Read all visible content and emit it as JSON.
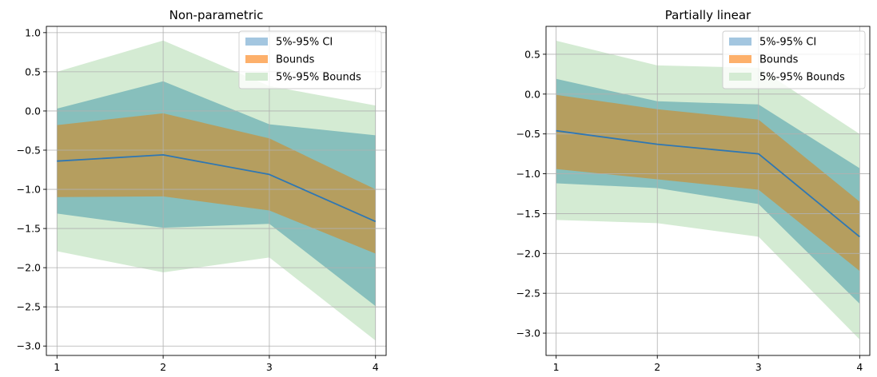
{
  "chart_data": [
    {
      "type": "area",
      "title": "Non-parametric",
      "xlabel": "",
      "ylabel": "",
      "x": [
        1,
        2,
        3,
        4
      ],
      "xlim": [
        0.9,
        4.1
      ],
      "ylim": [
        -3.12,
        1.08
      ],
      "yticks": [
        1.0,
        0.5,
        0.0,
        -0.5,
        -1.0,
        -1.5,
        -2.0,
        -2.5,
        -3.0
      ],
      "ytick_labels": [
        "1.0",
        "0.5",
        "0.0",
        "−0.5",
        "−1.0",
        "−1.5",
        "−2.0",
        "−2.5",
        "−3.0"
      ],
      "xticks": [
        1,
        2,
        3,
        4
      ],
      "xtick_labels": [
        "1",
        "2",
        "3",
        "4"
      ],
      "grid": true,
      "legend_position": "top-right",
      "bands": [
        {
          "name": "5%-95% Bounds",
          "color": "#d4ebd3",
          "lower": [
            -1.79,
            -2.06,
            -1.87,
            -2.93
          ],
          "upper": [
            0.5,
            0.9,
            0.32,
            0.07
          ]
        },
        {
          "name": "5%-95% CI",
          "color": "#87bfbc",
          "lower": [
            -1.31,
            -1.49,
            -1.44,
            -2.49
          ],
          "upper": [
            0.03,
            0.38,
            -0.17,
            -0.31
          ]
        },
        {
          "name": "Bounds",
          "color": "#b59e5f",
          "lower": [
            -1.1,
            -1.09,
            -1.27,
            -1.82
          ],
          "upper": [
            -0.18,
            -0.03,
            -0.35,
            -1.0
          ]
        }
      ],
      "series": [
        {
          "name": "",
          "color": "#2f77b3",
          "values": [
            -0.64,
            -0.56,
            -0.81,
            -1.41
          ]
        }
      ],
      "legend": [
        {
          "label": "5%-95% CI",
          "color": "#a3c6e0"
        },
        {
          "label": "Bounds",
          "color": "#fdb06b"
        },
        {
          "label": "5%-95% Bounds",
          "color": "#d4ebd3"
        }
      ]
    },
    {
      "type": "area",
      "title": "Partially linear",
      "xlabel": "",
      "ylabel": "",
      "x": [
        1,
        2,
        3,
        4
      ],
      "xlim": [
        0.9,
        4.1
      ],
      "ylim": [
        -3.28,
        0.85
      ],
      "yticks": [
        0.5,
        0.0,
        -0.5,
        -1.0,
        -1.5,
        -2.0,
        -2.5,
        -3.0
      ],
      "ytick_labels": [
        "0.5",
        "0.0",
        "−0.5",
        "−1.0",
        "−1.5",
        "−2.0",
        "−2.5",
        "−3.0"
      ],
      "xticks": [
        1,
        2,
        3,
        4
      ],
      "xtick_labels": [
        "1",
        "2",
        "3",
        "4"
      ],
      "grid": true,
      "legend_position": "top-right",
      "bands": [
        {
          "name": "5%-95% Bounds",
          "color": "#d4ebd3",
          "lower": [
            -1.58,
            -1.62,
            -1.79,
            -3.08
          ],
          "upper": [
            0.67,
            0.36,
            0.33,
            -0.5
          ]
        },
        {
          "name": "5%-95% CI",
          "color": "#87bfbc",
          "lower": [
            -1.12,
            -1.18,
            -1.38,
            -2.63
          ],
          "upper": [
            0.19,
            -0.09,
            -0.13,
            -0.93
          ]
        },
        {
          "name": "Bounds",
          "color": "#b59e5f",
          "lower": [
            -0.94,
            -1.07,
            -1.2,
            -2.22
          ],
          "upper": [
            -0.01,
            -0.19,
            -0.32,
            -1.35
          ]
        }
      ],
      "series": [
        {
          "name": "",
          "color": "#2f77b3",
          "values": [
            -0.46,
            -0.63,
            -0.75,
            -1.79
          ]
        }
      ],
      "legend": [
        {
          "label": "5%-95% CI",
          "color": "#a3c6e0"
        },
        {
          "label": "Bounds",
          "color": "#fdb06b"
        },
        {
          "label": "5%-95% Bounds",
          "color": "#d4ebd3"
        }
      ]
    }
  ]
}
